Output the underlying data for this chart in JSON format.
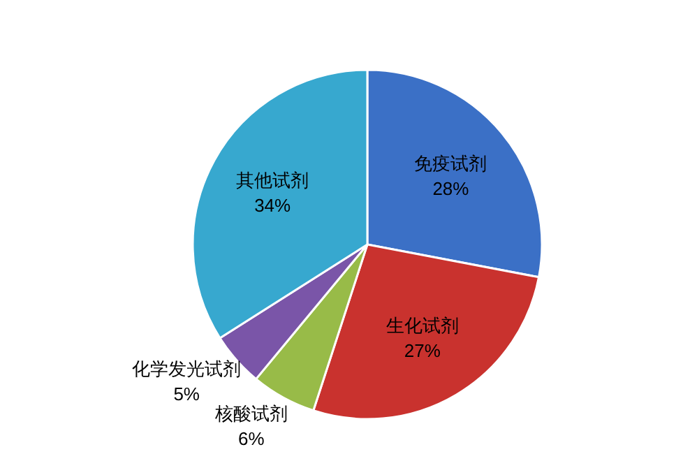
{
  "chart_data": {
    "type": "pie",
    "categories": [
      "免疫试剂",
      "生化试剂",
      "核酸试剂",
      "化学发光试剂",
      "其他试剂"
    ],
    "values": [
      28,
      27,
      6,
      5,
      34
    ],
    "value_labels": [
      "28%",
      "27%",
      "6%",
      "5%",
      "34%"
    ],
    "colors": [
      "#3b70c6",
      "#c9322e",
      "#98bb48",
      "#7a55a8",
      "#37a8cf"
    ]
  }
}
